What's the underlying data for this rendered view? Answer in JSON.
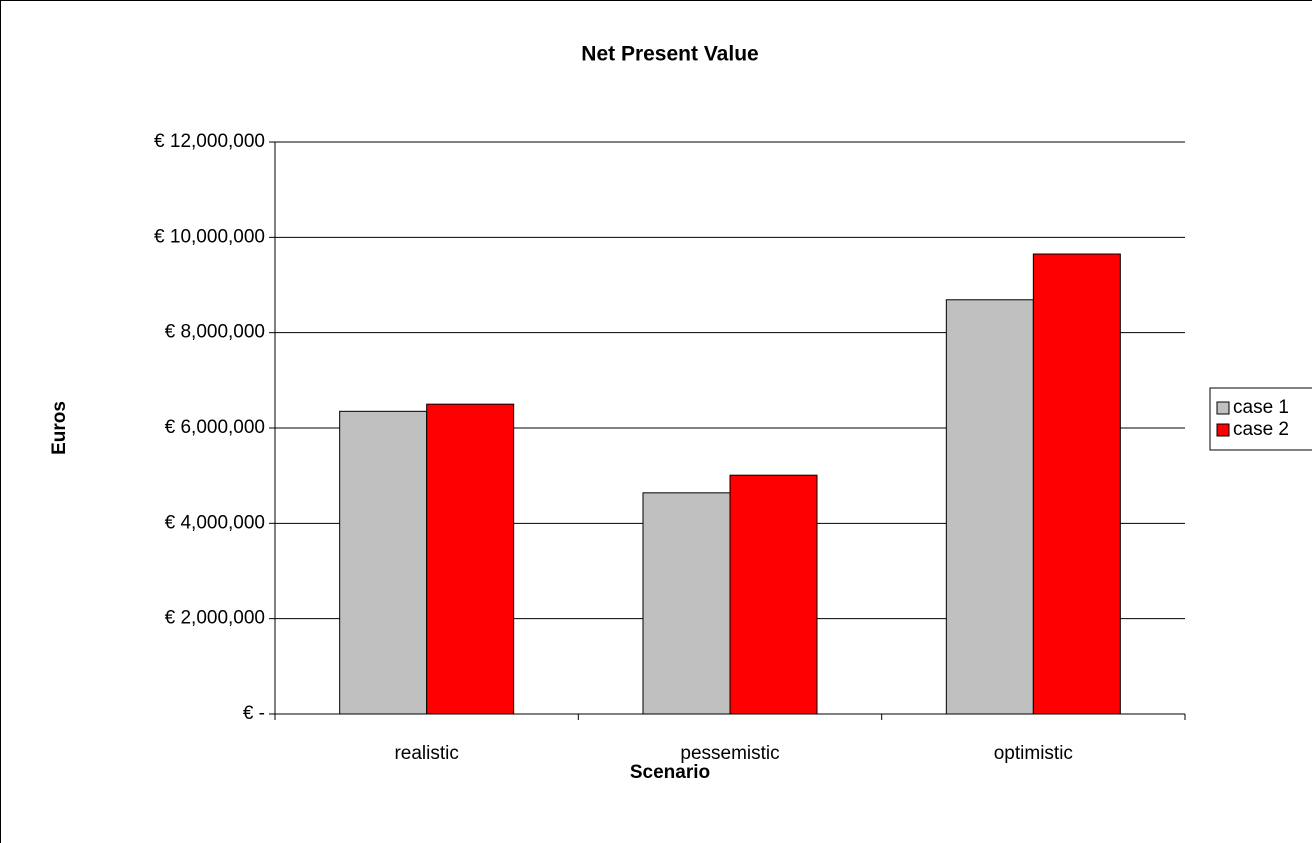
{
  "chart_data": {
    "type": "bar",
    "title": "Net Present Value",
    "x_label": "Scenario",
    "y_label": "Euros",
    "categories": [
      "realistic",
      "pessemistic",
      "optimistic"
    ],
    "series": [
      {
        "name": "case 1",
        "color": "#c0c0c0",
        "values": [
          6350000,
          4640000,
          8690000
        ]
      },
      {
        "name": "case 2",
        "color": "#ff0000",
        "values": [
          6500000,
          5010000,
          9650000
        ]
      }
    ],
    "ylim": [
      0,
      12000000
    ],
    "yticks": [
      {
        "value": 0,
        "label": "€ -"
      },
      {
        "value": 2000000,
        "label": "€ 2,000,000"
      },
      {
        "value": 4000000,
        "label": "€ 4,000,000"
      },
      {
        "value": 6000000,
        "label": "€ 6,000,000"
      },
      {
        "value": 8000000,
        "label": "€ 8,000,000"
      },
      {
        "value": 10000000,
        "label": "€ 10,000,000"
      },
      {
        "value": 12000000,
        "label": "€ 12,000,000"
      }
    ],
    "grid": true,
    "legend": "right"
  }
}
